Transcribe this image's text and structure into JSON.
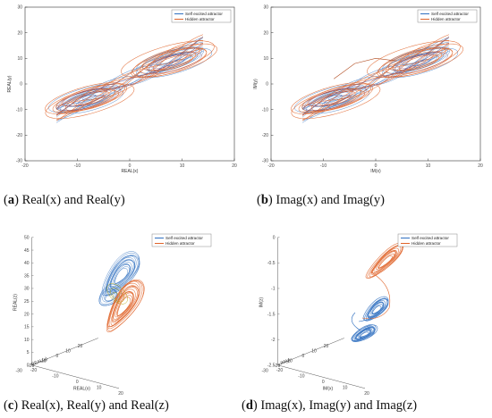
{
  "colors": {
    "self": "#2f6fc0",
    "hidden": "#e0642a",
    "hidden_dark": "#b04a1e",
    "accent": "#b0a000"
  },
  "captions": [
    {
      "letter": "a",
      "text": " Real(x) and Real(y)"
    },
    {
      "letter": "b",
      "text": " Imag(x) and Imag(y)"
    },
    {
      "letter": "c",
      "text": "Real(x), Real(y) and Real(z)"
    },
    {
      "letter": "d",
      "text": "Imag(x), Imag(y) and Imag(z)"
    }
  ],
  "chart_data": [
    {
      "type": "line",
      "xlabel": "REAL(x)",
      "ylabel": "REAL(y)",
      "xlim": [
        -20,
        20
      ],
      "ylim": [
        -30,
        30
      ],
      "xticks": [
        "-20",
        "-10",
        "0",
        "10",
        "20"
      ],
      "yticks": [
        "30",
        "20",
        "10",
        "0",
        "-10",
        "-20",
        "-30"
      ],
      "legend": {
        "position": "top-right",
        "entries": [
          "Self excited attractor",
          "Hidden attractor"
        ]
      },
      "series": [
        {
          "name": "Self excited attractor",
          "color": "#2f6fc0",
          "x_range": [
            -15,
            15
          ],
          "y_range": [
            -15,
            15
          ]
        },
        {
          "name": "Hidden attractor",
          "color": "#e0642a",
          "x_range": [
            -17,
            18
          ],
          "y_range": [
            -20,
            22
          ]
        }
      ]
    },
    {
      "type": "line",
      "xlabel": "IM(x)",
      "ylabel": "IM(y)",
      "xlim": [
        -20,
        20
      ],
      "ylim": [
        -30,
        30
      ],
      "xticks": [
        "-20",
        "-10",
        "0",
        "10",
        "20"
      ],
      "yticks": [
        "30",
        "20",
        "10",
        "0",
        "-10",
        "-20",
        "-30"
      ],
      "legend": {
        "position": "top-right",
        "entries": [
          "Self excited attractor",
          "Hidden attractor"
        ]
      },
      "series": [
        {
          "name": "Self excited attractor",
          "color": "#2f6fc0",
          "x_range": [
            -15,
            15
          ],
          "y_range": [
            -15,
            15
          ]
        },
        {
          "name": "Hidden attractor",
          "color": "#e0642a",
          "x_range": [
            -17,
            18
          ],
          "y_range": [
            -20,
            22
          ]
        }
      ]
    },
    {
      "type": "line",
      "xlabel": "REAL(x)",
      "ylabel": "REAL(y)",
      "zlabel": "REAL(z)",
      "zticks": [
        "50",
        "45",
        "40",
        "35",
        "30",
        "25",
        "20",
        "15",
        "10",
        "5",
        "0"
      ],
      "xticks": [
        "-20",
        "-10",
        "0",
        "10",
        "20"
      ],
      "yticks": [
        "-30",
        "-20",
        "-10",
        "0",
        "10",
        "20"
      ],
      "legend": {
        "position": "top-right",
        "entries": [
          "Self excited attractor",
          "Hidden attractor"
        ]
      }
    },
    {
      "type": "line",
      "xlabel": "IM(x)",
      "ylabel": "IM(y)",
      "zlabel": "IM(z)",
      "zticks": [
        "0",
        "-0.5",
        "-1",
        "-1.5",
        "-2",
        "-2.5"
      ],
      "xticks": [
        "-20",
        "-10",
        "0",
        "10",
        "20"
      ],
      "yticks": [
        "-30",
        "-20",
        "-10",
        "0",
        "10",
        "20"
      ],
      "legend": {
        "position": "top-right",
        "entries": [
          "Self excited attractor",
          "Hidden attractor"
        ]
      }
    }
  ]
}
